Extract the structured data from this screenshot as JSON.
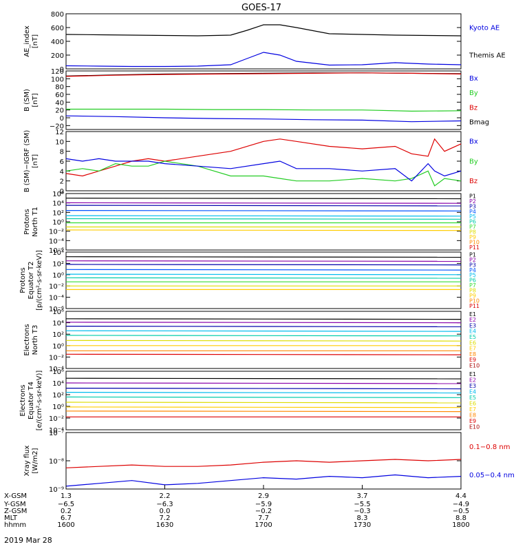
{
  "title": "GOES-17",
  "date": "2019 Mar 28",
  "colors": {
    "black": "#000000",
    "blue": "#0000e0",
    "green": "#22cc22",
    "red": "#dd0000",
    "darkred": "#aa0000",
    "purple": "#8800aa",
    "navy": "#0000aa",
    "royal": "#0055ff",
    "cyan": "#00bbee",
    "teal": "#00ccaa",
    "lightgreen": "#33dd33",
    "yellow": "#dddd00",
    "gold": "#ffcc00",
    "orange": "#ff8800",
    "magenta": "#cc0088"
  },
  "chart_data": [
    {
      "type": "line",
      "ylabel": "AE_index\n[nT]",
      "ylim": [
        0,
        800
      ],
      "scale": "linear",
      "ticks": [
        "0",
        "200",
        "400",
        "600",
        "800"
      ],
      "legend": [
        {
          "label": "Kyoto AE",
          "color": "#0000e0"
        },
        {
          "label": "Themis AE",
          "color": "#000000"
        }
      ],
      "x": [
        1600,
        1610,
        1620,
        1630,
        1640,
        1650,
        1655,
        1700,
        1705,
        1710,
        1720,
        1730,
        1740,
        1750,
        1800
      ],
      "series": [
        {
          "name": "Themis AE",
          "color": "#000000",
          "values": [
            500,
            495,
            490,
            485,
            480,
            490,
            560,
            640,
            640,
            600,
            510,
            500,
            490,
            485,
            480
          ]
        },
        {
          "name": "Kyoto AE",
          "color": "#0000e0",
          "values": [
            45,
            40,
            35,
            35,
            40,
            60,
            150,
            240,
            200,
            110,
            55,
            60,
            90,
            70,
            60
          ]
        }
      ]
    },
    {
      "type": "line",
      "ylabel": "B (SM)\n[nT]",
      "ylim": [
        -30,
        120
      ],
      "scale": "linear",
      "ticks": [
        "−20",
        "0",
        "20",
        "40",
        "60",
        "80",
        "100",
        "120"
      ],
      "legend": [
        {
          "label": "Bx",
          "color": "#0000e0"
        },
        {
          "label": "By",
          "color": "#22cc22"
        },
        {
          "label": "Bz",
          "color": "#dd0000"
        },
        {
          "label": "Bmag",
          "color": "#000000"
        }
      ],
      "x": [
        1600,
        1615,
        1630,
        1645,
        1700,
        1715,
        1730,
        1745,
        1800
      ],
      "series": [
        {
          "name": "Bmag",
          "color": "#000000",
          "values": [
            107,
            110,
            112,
            113,
            114,
            115,
            115,
            114,
            113
          ]
        },
        {
          "name": "Bz",
          "color": "#dd0000",
          "values": [
            106,
            109,
            111,
            112,
            113,
            114,
            115,
            114,
            112
          ]
        },
        {
          "name": "By",
          "color": "#22cc22",
          "values": [
            22,
            22,
            22,
            21,
            21,
            20,
            20,
            17,
            18
          ]
        },
        {
          "name": "Bx",
          "color": "#0000e0",
          "values": [
            5,
            3,
            0,
            -2,
            -3,
            -5,
            -6,
            -10,
            -8
          ]
        }
      ]
    },
    {
      "type": "line",
      "ylabel": "B (SM)−IGRF (SM)\n[nT]",
      "ylim": [
        0,
        12
      ],
      "scale": "linear",
      "ticks": [
        "0",
        "2",
        "4",
        "6",
        "8",
        "10",
        "12"
      ],
      "legend": [
        {
          "label": "Bx",
          "color": "#0000e0"
        },
        {
          "label": "By",
          "color": "#22cc22"
        },
        {
          "label": "Bz",
          "color": "#dd0000"
        }
      ],
      "x": [
        1600,
        1605,
        1610,
        1615,
        1620,
        1625,
        1630,
        1640,
        1650,
        1700,
        1705,
        1710,
        1720,
        1730,
        1740,
        1745,
        1750,
        1752,
        1755,
        1800
      ],
      "series": [
        {
          "name": "Bz",
          "color": "#dd0000",
          "values": [
            3.5,
            3,
            4,
            5,
            6,
            6.5,
            6,
            7,
            8,
            10,
            10.5,
            10,
            9,
            8.5,
            9,
            7.5,
            7,
            10.5,
            8,
            9.5
          ]
        },
        {
          "name": "By",
          "color": "#22cc22",
          "values": [
            4,
            4.5,
            4,
            5.5,
            5,
            5,
            6,
            5,
            3,
            3,
            2.5,
            2,
            2,
            2.5,
            2,
            2.5,
            4,
            1,
            2.5,
            2
          ]
        },
        {
          "name": "Bx",
          "color": "#0000e0",
          "values": [
            6.5,
            6,
            6.5,
            6,
            6,
            6,
            5.5,
            5,
            4.5,
            5.5,
            6,
            4.5,
            4.5,
            4,
            4.5,
            2,
            5.5,
            4,
            3,
            4
          ]
        }
      ]
    },
    {
      "type": "line",
      "ylabel": "Protons\nNorth T1",
      "ylim": [
        -7,
        4
      ],
      "scale": "log",
      "ticks": [
        "10⁶",
        "10⁴",
        "10²",
        "10⁰",
        "10⁻²",
        "10⁻⁴",
        "10⁻⁶"
      ],
      "legend": [
        {
          "label": "P1",
          "color": "#000000"
        },
        {
          "label": "P2",
          "color": "#8800aa"
        },
        {
          "label": "P3",
          "color": "#0000aa"
        },
        {
          "label": "P4",
          "color": "#0055ff"
        },
        {
          "label": "P5",
          "color": "#00bbee"
        },
        {
          "label": "P6",
          "color": "#00ccaa"
        },
        {
          "label": "P7",
          "color": "#33dd33"
        },
        {
          "label": "P8",
          "color": "#dddd00"
        },
        {
          "label": "P9",
          "color": "#ffcc00"
        },
        {
          "label": "P10",
          "color": "#ff8800"
        },
        {
          "label": "P11",
          "color": "#dd0000"
        }
      ],
      "x": [
        1600,
        1800
      ],
      "series": [
        {
          "name": "P1",
          "color": "#000000",
          "values": [
            3.1,
            3.0
          ]
        },
        {
          "name": "P2",
          "color": "#8800aa",
          "values": [
            2.2,
            2.1
          ]
        },
        {
          "name": "P3",
          "color": "#0000aa",
          "values": [
            1.7,
            1.6
          ]
        },
        {
          "name": "P4",
          "color": "#0055ff",
          "values": [
            0.7,
            0.6
          ]
        },
        {
          "name": "P5",
          "color": "#00bbee",
          "values": [
            -0.3,
            -0.4
          ]
        },
        {
          "name": "P6",
          "color": "#00ccaa",
          "values": [
            -0.9,
            -1.0
          ]
        },
        {
          "name": "P7",
          "color": "#33dd33",
          "values": [
            -1.7,
            -1.7
          ]
        },
        {
          "name": "P8",
          "color": "#dddd00",
          "values": [
            -2.5,
            -2.5
          ]
        },
        {
          "name": "P9",
          "color": "#ffcc00",
          "values": [
            -3.1,
            -3.2
          ]
        }
      ]
    },
    {
      "type": "line",
      "ylabel": "Protons\nEquator T2\n[p/(cm²-s-sr-keV)]",
      "ylim": [
        -7,
        4
      ],
      "scale": "log",
      "ticks": [
        "10⁴",
        "10²",
        "10⁰",
        "10⁻²",
        "10⁻⁴",
        "10⁻⁶"
      ],
      "legend": [
        {
          "label": "P1",
          "color": "#000000"
        },
        {
          "label": "P2",
          "color": "#8800aa"
        },
        {
          "label": "P3",
          "color": "#0000aa"
        },
        {
          "label": "P4",
          "color": "#0055ff"
        },
        {
          "label": "P5",
          "color": "#00bbee"
        },
        {
          "label": "P6",
          "color": "#00ccaa"
        },
        {
          "label": "P7",
          "color": "#33dd33"
        },
        {
          "label": "P8",
          "color": "#dddd00"
        },
        {
          "label": "P9",
          "color": "#ffcc00"
        },
        {
          "label": "P10",
          "color": "#ff8800"
        },
        {
          "label": "P11",
          "color": "#dd0000"
        }
      ],
      "x": [
        1600,
        1800
      ],
      "series": [
        {
          "name": "P1",
          "color": "#000000",
          "values": [
            3.1,
            3.0
          ]
        },
        {
          "name": "P2",
          "color": "#8800aa",
          "values": [
            2.3,
            2.2
          ]
        },
        {
          "name": "P3",
          "color": "#0000aa",
          "values": [
            1.6,
            1.5
          ]
        },
        {
          "name": "P4",
          "color": "#0055ff",
          "values": [
            0.6,
            0.5
          ]
        },
        {
          "name": "P5",
          "color": "#00bbee",
          "values": [
            -0.3,
            -0.4
          ]
        },
        {
          "name": "P6",
          "color": "#00ccaa",
          "values": [
            -1.0,
            -1.1
          ]
        },
        {
          "name": "P7",
          "color": "#33dd33",
          "values": [
            -1.8,
            -1.8
          ]
        },
        {
          "name": "P8",
          "color": "#dddd00",
          "values": [
            -2.6,
            -2.6
          ]
        },
        {
          "name": "P9",
          "color": "#ffcc00",
          "values": [
            -3.3,
            -3.3
          ]
        }
      ]
    },
    {
      "type": "line",
      "ylabel": "Electrons\nNorth T3",
      "ylim": [
        -4,
        6
      ],
      "scale": "log",
      "ticks": [
        "10⁶",
        "10⁴",
        "10²",
        "10⁰",
        "10⁻²",
        "10⁻⁴"
      ],
      "legend": [
        {
          "label": "E1",
          "color": "#000000"
        },
        {
          "label": "E2",
          "color": "#8800aa"
        },
        {
          "label": "E3",
          "color": "#0000aa"
        },
        {
          "label": "E4",
          "color": "#00bbee"
        },
        {
          "label": "E5",
          "color": "#00ccaa"
        },
        {
          "label": "E6",
          "color": "#dddd00"
        },
        {
          "label": "E7",
          "color": "#ffcc00"
        },
        {
          "label": "E8",
          "color": "#ff8800"
        },
        {
          "label": "E9",
          "color": "#dd0000"
        },
        {
          "label": "E10",
          "color": "#aa0000"
        }
      ],
      "x": [
        1600,
        1800
      ],
      "series": [
        {
          "name": "E1",
          "color": "#000000",
          "values": [
            4.7,
            4.6
          ]
        },
        {
          "name": "E2",
          "color": "#8800aa",
          "values": [
            4.1,
            4.0
          ]
        },
        {
          "name": "E3",
          "color": "#0000aa",
          "values": [
            3.4,
            3.3
          ]
        },
        {
          "name": "E4",
          "color": "#00bbee",
          "values": [
            2.6,
            2.5
          ]
        },
        {
          "name": "E5",
          "color": "#00ccaa",
          "values": [
            1.8,
            1.7
          ]
        },
        {
          "name": "E6",
          "color": "#dddd00",
          "values": [
            0.9,
            0.8
          ]
        },
        {
          "name": "E7",
          "color": "#ffcc00",
          "values": [
            0.0,
            0.0
          ]
        },
        {
          "name": "E8",
          "color": "#ff8800",
          "values": [
            -0.9,
            -0.9
          ]
        },
        {
          "name": "E9",
          "color": "#dd0000",
          "values": [
            -1.5,
            -1.6
          ]
        }
      ]
    },
    {
      "type": "line",
      "ylabel": "Electrons\nEquator T4\n[e/(cm²-s-sr-keV)]",
      "ylim": [
        -4,
        6
      ],
      "scale": "log",
      "ticks": [
        "10⁶",
        "10⁴",
        "10²",
        "10⁰",
        "10⁻²",
        "10⁻⁴"
      ],
      "legend": [
        {
          "label": "E1",
          "color": "#000000"
        },
        {
          "label": "E2",
          "color": "#8800aa"
        },
        {
          "label": "E3",
          "color": "#0000aa"
        },
        {
          "label": "E4",
          "color": "#00bbee"
        },
        {
          "label": "E5",
          "color": "#00ccaa"
        },
        {
          "label": "E6",
          "color": "#dddd00"
        },
        {
          "label": "E7",
          "color": "#ffcc00"
        },
        {
          "label": "E8",
          "color": "#ff8800"
        },
        {
          "label": "E9",
          "color": "#dd0000"
        },
        {
          "label": "E10",
          "color": "#aa0000"
        }
      ],
      "x": [
        1600,
        1800
      ],
      "series": [
        {
          "name": "E1",
          "color": "#000000",
          "values": [
            4.8,
            4.7
          ]
        },
        {
          "name": "E2",
          "color": "#8800aa",
          "values": [
            4.0,
            3.9
          ]
        },
        {
          "name": "E3",
          "color": "#0000aa",
          "values": [
            3.1,
            3.0
          ]
        },
        {
          "name": "E4",
          "color": "#00bbee",
          "values": [
            2.4,
            2.3
          ]
        },
        {
          "name": "E5",
          "color": "#00ccaa",
          "values": [
            1.6,
            1.5
          ]
        },
        {
          "name": "E6",
          "color": "#dddd00",
          "values": [
            0.7,
            0.6
          ]
        },
        {
          "name": "E7",
          "color": "#ffcc00",
          "values": [
            -0.1,
            -0.2
          ]
        },
        {
          "name": "E8",
          "color": "#ff8800",
          "values": [
            -0.8,
            -0.9
          ]
        },
        {
          "name": "E9",
          "color": "#dd0000",
          "values": [
            -1.8,
            -1.8
          ]
        }
      ]
    },
    {
      "type": "line",
      "ylabel": "Xray flux\n[W/m2]",
      "ylim": [
        -9,
        -7
      ],
      "scale": "log",
      "ticks": [
        "10⁻⁷",
        "10⁻⁸",
        "10⁻⁹"
      ],
      "legend": [
        {
          "label": "0.1−0.8 nm",
          "color": "#dd0000"
        },
        {
          "label": "0.05−0.4 nm",
          "color": "#0000e0"
        }
      ],
      "x": [
        1600,
        1610,
        1620,
        1630,
        1640,
        1650,
        1700,
        1710,
        1720,
        1730,
        1740,
        1750,
        1800
      ],
      "series": [
        {
          "name": "0.1−0.8 nm",
          "color": "#dd0000",
          "values": [
            -8.25,
            -8.2,
            -8.15,
            -8.2,
            -8.2,
            -8.15,
            -8.05,
            -8.0,
            -8.05,
            -8.0,
            -7.95,
            -8.0,
            -7.95
          ]
        },
        {
          "name": "0.05−0.4 nm",
          "color": "#0000e0",
          "values": [
            -8.9,
            -8.8,
            -8.7,
            -8.85,
            -8.8,
            -8.7,
            -8.6,
            -8.65,
            -8.55,
            -8.6,
            -8.5,
            -8.6,
            -8.55
          ]
        }
      ]
    }
  ],
  "xaxis": {
    "row_labels": [
      "X-GSM",
      "Y-GSM",
      "Z-GSM",
      "MLT",
      "hhmm"
    ],
    "columns": [
      [
        "1.3",
        "−6.5",
        "0.2",
        "6.7",
        "1600"
      ],
      [
        "2.2",
        "−6.3",
        "0.0",
        "7.2",
        "1630"
      ],
      [
        "2.9",
        "−5.9",
        "−0.2",
        "7.7",
        "1700"
      ],
      [
        "3.7",
        "−5.5",
        "−0.3",
        "8.3",
        "1730"
      ],
      [
        "4.4",
        "−4.9",
        "−0.5",
        "8.8",
        "1800"
      ]
    ]
  }
}
